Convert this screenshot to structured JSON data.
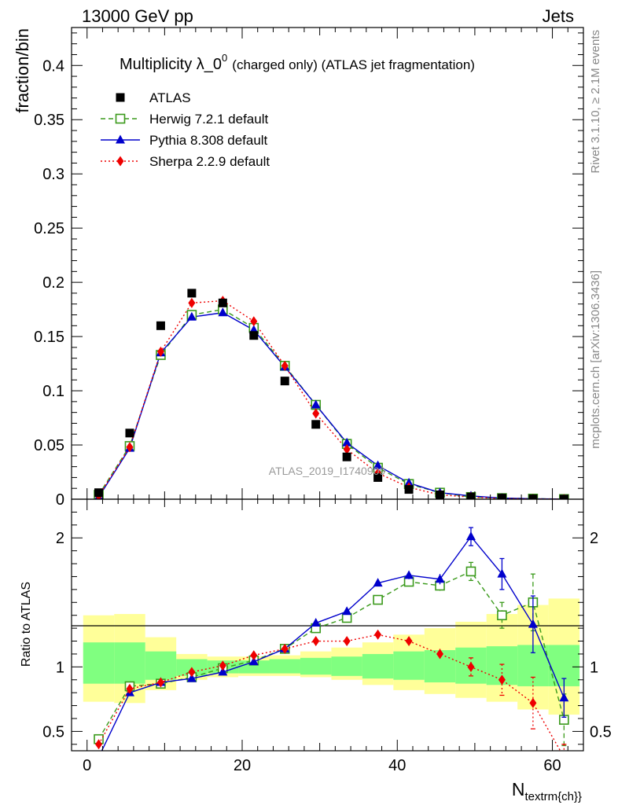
{
  "header": {
    "left": "13000 GeV pp",
    "right": "Jets"
  },
  "title": {
    "main": "Multiplicity λ_0",
    "superscript": "0",
    "suffix": "(charged only) (ATLAS jet fragmentation)"
  },
  "side_labels": {
    "rivet": "Rivet 3.1.10, ≥ 2.1M events",
    "mcplots": "mcplots.cern.ch [arXiv:1306.3436]"
  },
  "watermark": "ATLAS_2019_I1740909",
  "colors": {
    "atlas": "#000000",
    "herwig": "#3a9a1b",
    "pythia": "#0000cc",
    "sherpa": "#ee0000",
    "band_inner": "#80ff80",
    "band_outer": "#ffff99"
  },
  "chart_data": [
    {
      "type": "scatter",
      "name": "main",
      "ylabel": "fraction/bin",
      "xlim": [
        -2,
        64
      ],
      "ylim": [
        0,
        0.435
      ],
      "yticks": [
        0,
        0.05,
        0.1,
        0.15,
        0.2,
        0.25,
        0.3,
        0.35,
        0.4
      ],
      "ytick_labels": [
        "0",
        "0.05",
        "0.1",
        "0.15",
        "0.2",
        "0.25",
        "0.3",
        "0.35",
        "0.4"
      ],
      "x": [
        1.5,
        5.5,
        9.5,
        13.5,
        17.5,
        21.5,
        25.5,
        29.5,
        33.5,
        37.5,
        41.5,
        45.5,
        49.5,
        53.5,
        57.5,
        61.5
      ],
      "series": [
        {
          "name": "ATLAS",
          "key": "atlas",
          "values": [
            0.006,
            0.061,
            0.16,
            0.19,
            0.181,
            0.151,
            0.109,
            0.069,
            0.039,
            0.02,
            0.009,
            0.004,
            0.002,
            0.001,
            0.0003,
            0.0001
          ]
        },
        {
          "name": "Herwig 7.2.1 default",
          "key": "herwig",
          "values": [
            0.004,
            0.049,
            0.133,
            0.17,
            0.175,
            0.158,
            0.123,
            0.087,
            0.051,
            0.029,
            0.014,
            0.006,
            0.002,
            0.001,
            0.0005,
            0.0001
          ]
        },
        {
          "name": "Pythia 8.308 default",
          "key": "pythia",
          "values": [
            0.002,
            0.047,
            0.135,
            0.168,
            0.172,
            0.156,
            0.122,
            0.087,
            0.052,
            0.031,
            0.015,
            0.006,
            0.003,
            0.001,
            0.0004,
            0.0001
          ]
        },
        {
          "name": "Sherpa 2.2.9 default",
          "key": "sherpa",
          "values": [
            0.003,
            0.048,
            0.136,
            0.181,
            0.183,
            0.164,
            0.123,
            0.079,
            0.046,
            0.024,
            0.011,
            0.004,
            0.002,
            0.0006,
            0.0002,
            0.0001
          ]
        }
      ]
    },
    {
      "type": "line",
      "name": "ratio",
      "xlabel": "N",
      "xlabel_sub": "textrm{ch}",
      "ylabel": "Ratio to ATLAS",
      "xlim": [
        -2,
        64
      ],
      "ylim": [
        0.35,
        2.3
      ],
      "xticks": [
        0,
        20,
        40,
        60
      ],
      "xtick_labels": [
        "0",
        "20",
        "40",
        "60"
      ],
      "yticks": [
        0.5,
        1,
        2
      ],
      "ytick_labels": [
        "0.5",
        "1",
        "2"
      ],
      "band_edges": [
        -0.5,
        3.5,
        7.5,
        11.5,
        15.5,
        19.5,
        23.5,
        27.5,
        31.5,
        35.5,
        39.5,
        43.5,
        47.5,
        51.5,
        55.5,
        59.5,
        63.5
      ],
      "band_inner": [
        [
          0.87,
          1.19
        ],
        [
          0.87,
          1.19
        ],
        [
          0.9,
          1.12
        ],
        [
          0.93,
          1.06
        ],
        [
          0.95,
          1.05
        ],
        [
          0.95,
          1.05
        ],
        [
          0.95,
          1.06
        ],
        [
          0.94,
          1.07
        ],
        [
          0.93,
          1.08
        ],
        [
          0.91,
          1.1
        ],
        [
          0.9,
          1.12
        ],
        [
          0.88,
          1.13
        ],
        [
          0.87,
          1.15
        ],
        [
          0.86,
          1.16
        ],
        [
          0.85,
          1.17
        ],
        [
          0.85,
          1.17
        ]
      ],
      "band_outer": [
        [
          0.73,
          1.4
        ],
        [
          0.72,
          1.41
        ],
        [
          0.82,
          1.23
        ],
        [
          0.9,
          1.1
        ],
        [
          0.92,
          1.08
        ],
        [
          0.93,
          1.08
        ],
        [
          0.93,
          1.09
        ],
        [
          0.92,
          1.12
        ],
        [
          0.9,
          1.15
        ],
        [
          0.86,
          1.19
        ],
        [
          0.82,
          1.25
        ],
        [
          0.79,
          1.3
        ],
        [
          0.76,
          1.35
        ],
        [
          0.73,
          1.41
        ],
        [
          0.67,
          1.48
        ],
        [
          0.63,
          1.53
        ]
      ],
      "series": [
        {
          "name": "Herwig 7.2.1 default",
          "key": "herwig",
          "values": [
            0.44,
            0.85,
            0.87,
            0.92,
            0.99,
            1.05,
            1.14,
            1.3,
            1.38,
            1.52,
            1.66,
            1.63,
            1.74,
            1.4,
            1.5,
            0.59
          ],
          "err": [
            0.03,
            0.02,
            0.02,
            0.01,
            0.01,
            0.01,
            0.01,
            0.01,
            0.01,
            0.02,
            0.03,
            0.04,
            0.07,
            0.1,
            0.22,
            0.2
          ]
        },
        {
          "name": "Pythia 8.308 default",
          "key": "pythia",
          "values": [
            0.3,
            0.8,
            0.88,
            0.91,
            0.96,
            1.04,
            1.14,
            1.34,
            1.43,
            1.65,
            1.71,
            1.68,
            2.01,
            1.72,
            1.33,
            0.76
          ],
          "err": [
            0.03,
            0.02,
            0.02,
            0.01,
            0.01,
            0.01,
            0.01,
            0.01,
            0.01,
            0.02,
            0.03,
            0.04,
            0.07,
            0.12,
            0.22,
            0.15
          ]
        },
        {
          "name": "Sherpa 2.2.9 default",
          "key": "sherpa",
          "values": [
            0.4,
            0.83,
            0.88,
            0.96,
            1.01,
            1.09,
            1.14,
            1.2,
            1.2,
            1.25,
            1.2,
            1.1,
            1.0,
            0.9,
            0.72,
            0.3
          ],
          "err": [
            0.03,
            0.02,
            0.02,
            0.01,
            0.01,
            0.01,
            0.01,
            0.01,
            0.01,
            0.02,
            0.03,
            0.04,
            0.07,
            0.12,
            0.2,
            0.1
          ]
        }
      ]
    }
  ]
}
